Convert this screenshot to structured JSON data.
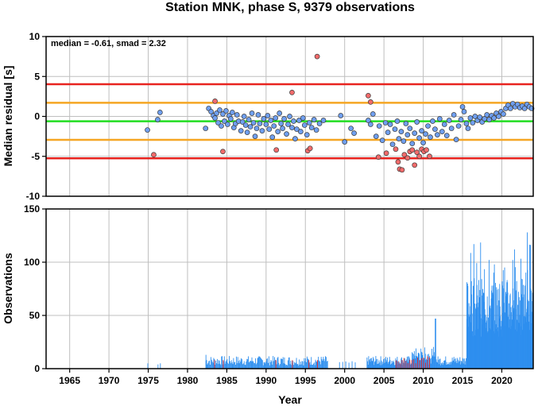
{
  "chart_data": [
    {
      "type": "scatter",
      "title": "Station MNK, phase S, 9379 observations",
      "ylabel": "Median residual [s]",
      "annotation": "median = -0.61, smad = 2.32",
      "xlim": [
        1962,
        2024
      ],
      "ylim": [
        -10,
        10
      ],
      "x_ticks": [
        "1965",
        "1970",
        "1975",
        "1980",
        "1985",
        "1990",
        "1995",
        "2000",
        "2005",
        "2010",
        "2015",
        "2020"
      ],
      "y_ticks": [
        "-10",
        "-5",
        "0",
        "5",
        "10"
      ],
      "reference_lines": [
        {
          "value": 4.03,
          "color": "#e8231f"
        },
        {
          "value": 1.71,
          "color": "#f5a623"
        },
        {
          "value": -0.61,
          "color": "#22dd22"
        },
        {
          "value": -2.93,
          "color": "#f5a623"
        },
        {
          "value": -5.25,
          "color": "#e8231f"
        }
      ],
      "colors": {
        "inlier": "#6f9ff0",
        "outlier": "#f26b6b"
      },
      "series": [
        {
          "points": [
            [
              1974.9,
              -1.7
            ],
            [
              1976.2,
              -0.4
            ],
            [
              1976.5,
              0.5
            ],
            [
              1982.3,
              -1.5
            ],
            [
              1982.7,
              1.0
            ],
            [
              1983.0,
              0.6
            ],
            [
              1983.3,
              0.1
            ],
            [
              1983.5,
              -0.2
            ],
            [
              1983.7,
              0.4
            ],
            [
              1983.9,
              -0.8
            ],
            [
              1984.1,
              0.8
            ],
            [
              1984.3,
              -1.2
            ],
            [
              1984.5,
              0.3
            ],
            [
              1984.7,
              -0.6
            ],
            [
              1984.9,
              0.7
            ],
            [
              1985.1,
              -1.0
            ],
            [
              1985.3,
              0.1
            ],
            [
              1985.5,
              -0.3
            ],
            [
              1985.7,
              0.5
            ],
            [
              1985.9,
              -1.4
            ],
            [
              1986.1,
              -0.9
            ],
            [
              1986.3,
              0.2
            ],
            [
              1986.5,
              -0.6
            ],
            [
              1986.8,
              -1.8
            ],
            [
              1987.0,
              -0.7
            ],
            [
              1987.2,
              0.0
            ],
            [
              1987.4,
              -1.1
            ],
            [
              1987.6,
              -2.0
            ],
            [
              1987.8,
              -0.4
            ],
            [
              1988.0,
              -1.3
            ],
            [
              1988.2,
              0.4
            ],
            [
              1988.4,
              -0.8
            ],
            [
              1988.6,
              -2.5
            ],
            [
              1988.8,
              -1.5
            ],
            [
              1989.0,
              0.2
            ],
            [
              1989.2,
              -0.9
            ],
            [
              1989.5,
              -1.8
            ],
            [
              1989.7,
              -0.3
            ],
            [
              1990.0,
              -1.0
            ],
            [
              1990.2,
              0.1
            ],
            [
              1990.4,
              -1.6
            ],
            [
              1990.6,
              -0.5
            ],
            [
              1990.8,
              -2.6
            ],
            [
              1991.0,
              -1.2
            ],
            [
              1991.2,
              -0.2
            ],
            [
              1991.5,
              -1.9
            ],
            [
              1991.7,
              0.4
            ],
            [
              1991.9,
              -0.9
            ],
            [
              1992.1,
              -1.5
            ],
            [
              1992.3,
              -0.3
            ],
            [
              1992.6,
              -2.2
            ],
            [
              1992.8,
              -1.0
            ],
            [
              1993.0,
              0.0
            ],
            [
              1993.3,
              -1.4
            ],
            [
              1993.5,
              -0.6
            ],
            [
              1993.7,
              -2.8
            ],
            [
              1993.9,
              -1.6
            ],
            [
              1994.2,
              -0.5
            ],
            [
              1994.4,
              -1.9
            ],
            [
              1994.7,
              -0.2
            ],
            [
              1994.9,
              -1.1
            ],
            [
              1995.2,
              -2.3
            ],
            [
              1995.5,
              -0.8
            ],
            [
              1995.8,
              -1.4
            ],
            [
              1996.1,
              -0.4
            ],
            [
              1996.4,
              -1.7
            ],
            [
              1996.8,
              -0.9
            ],
            [
              1997.3,
              -0.5
            ],
            [
              1999.5,
              0.1
            ],
            [
              2000.0,
              -3.2
            ],
            [
              2000.8,
              -1.5
            ],
            [
              2001.2,
              -2.1
            ],
            [
              2003.0,
              -0.5
            ],
            [
              2003.3,
              -1.0
            ],
            [
              2003.6,
              0.3
            ],
            [
              2004.0,
              -2.5
            ],
            [
              2004.4,
              -1.2
            ],
            [
              2004.8,
              -3.0
            ],
            [
              2005.2,
              -0.8
            ],
            [
              2005.5,
              -2.0
            ],
            [
              2005.8,
              -1.0
            ],
            [
              2006.1,
              -3.5
            ],
            [
              2006.4,
              -1.6
            ],
            [
              2006.7,
              -0.6
            ],
            [
              2006.9,
              -2.8
            ],
            [
              2007.2,
              -1.9
            ],
            [
              2007.5,
              -3.1
            ],
            [
              2007.8,
              -0.9
            ],
            [
              2008.0,
              -2.3
            ],
            [
              2008.3,
              -1.5
            ],
            [
              2008.6,
              -3.4
            ],
            [
              2008.9,
              -2.1
            ],
            [
              2009.2,
              -0.7
            ],
            [
              2009.5,
              -2.7
            ],
            [
              2009.8,
              -1.8
            ],
            [
              2010.0,
              -3.3
            ],
            [
              2010.3,
              -2.2
            ],
            [
              2010.6,
              -1.2
            ],
            [
              2010.9,
              -2.6
            ],
            [
              2011.2,
              -0.6
            ],
            [
              2011.5,
              -1.6
            ],
            [
              2011.8,
              -2.3
            ],
            [
              2012.1,
              -0.3
            ],
            [
              2012.4,
              -1.9
            ],
            [
              2012.7,
              -1.0
            ],
            [
              2013.0,
              -2.4
            ],
            [
              2013.3,
              -0.5
            ],
            [
              2013.6,
              -1.5
            ],
            [
              2013.9,
              0.2
            ],
            [
              2014.2,
              -2.9
            ],
            [
              2014.5,
              -1.2
            ],
            [
              2014.8,
              -0.4
            ],
            [
              2015.0,
              1.2
            ],
            [
              2015.2,
              0.6
            ],
            [
              2015.5,
              -0.9
            ],
            [
              2015.7,
              -1.5
            ],
            [
              2016.0,
              -0.2
            ],
            [
              2016.3,
              -0.8
            ],
            [
              2016.6,
              0.0
            ],
            [
              2016.9,
              -0.5
            ],
            [
              2017.2,
              -0.1
            ],
            [
              2017.5,
              -0.7
            ],
            [
              2017.8,
              -0.3
            ],
            [
              2018.1,
              0.2
            ],
            [
              2018.4,
              -0.4
            ],
            [
              2018.7,
              0.1
            ],
            [
              2019.0,
              -0.2
            ],
            [
              2019.3,
              0.4
            ],
            [
              2019.6,
              0.0
            ],
            [
              2019.9,
              0.6
            ],
            [
              2020.2,
              0.3
            ],
            [
              2020.5,
              1.0
            ],
            [
              2020.8,
              1.4
            ],
            [
              2021.1,
              1.0
            ],
            [
              2021.4,
              1.6
            ],
            [
              2021.7,
              1.2
            ],
            [
              2022.0,
              1.5
            ],
            [
              2022.3,
              1.1
            ],
            [
              2022.6,
              1.3
            ],
            [
              2022.9,
              1.0
            ],
            [
              2023.2,
              1.5
            ],
            [
              2023.5,
              1.2
            ],
            [
              2023.8,
              1.0
            ]
          ]
        },
        {
          "points": [
            [
              1975.7,
              -4.8
            ],
            [
              1983.5,
              1.9
            ],
            [
              1984.5,
              -4.4
            ],
            [
              1991.3,
              -4.2
            ],
            [
              1993.3,
              3.0
            ],
            [
              1995.3,
              -4.3
            ],
            [
              1995.6,
              -4.0
            ],
            [
              1996.5,
              7.5
            ],
            [
              2003.0,
              2.6
            ],
            [
              2003.3,
              1.8
            ],
            [
              2004.3,
              -5.1
            ],
            [
              2005.3,
              -4.6
            ],
            [
              2006.5,
              -4.1
            ],
            [
              2006.8,
              -5.7
            ],
            [
              2007.0,
              -6.6
            ],
            [
              2007.3,
              -6.7
            ],
            [
              2007.6,
              -4.8
            ],
            [
              2008.0,
              -5.2
            ],
            [
              2008.3,
              -4.4
            ],
            [
              2008.6,
              -4.2
            ],
            [
              2008.9,
              -6.1
            ],
            [
              2009.2,
              -4.5
            ],
            [
              2009.5,
              -5.0
            ],
            [
              2009.8,
              -4.1
            ],
            [
              2010.1,
              -4.4
            ],
            [
              2010.4,
              -4.2
            ],
            [
              2010.8,
              -5.0
            ]
          ]
        }
      ]
    },
    {
      "type": "bar",
      "ylabel": "Observations",
      "xlabel": "Year",
      "xlim": [
        1962,
        2024
      ],
      "ylim": [
        0,
        150
      ],
      "x_ticks": [
        "1965",
        "1970",
        "1975",
        "1980",
        "1985",
        "1990",
        "1995",
        "2000",
        "2005",
        "2010",
        "2015",
        "2020"
      ],
      "y_ticks": [
        "0",
        "50",
        "100",
        "150"
      ],
      "colors": {
        "inlier": "#2e8fef",
        "outlier": "#e8231f"
      }
    }
  ]
}
